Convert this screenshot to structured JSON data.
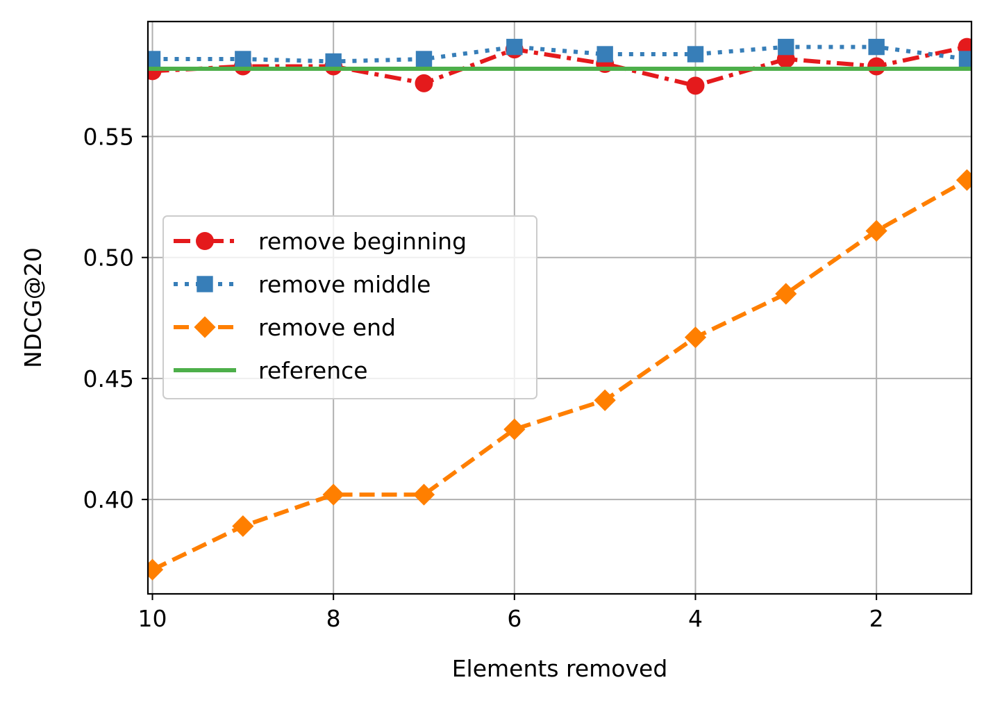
{
  "chart_data": {
    "type": "line",
    "xlabel": "Elements removed",
    "ylabel": "NDCG@20",
    "x": [
      10,
      9,
      8,
      7,
      6,
      5,
      4,
      3,
      2,
      1
    ],
    "xlim": [
      10.05,
      0.95
    ],
    "ylim": [
      0.361,
      0.5975
    ],
    "x_ticks": [
      10,
      8,
      6,
      4,
      2
    ],
    "y_ticks": [
      0.4,
      0.45,
      0.5,
      0.55
    ],
    "x_tick_labels": [
      "10",
      "8",
      "6",
      "4",
      "2"
    ],
    "y_tick_labels": [
      "0.40",
      "0.45",
      "0.50",
      "0.55"
    ],
    "grid": true,
    "legend_position": "center-left",
    "series": [
      {
        "name": "remove beginning",
        "color": "#e41a1c",
        "marker": "circle",
        "line_style": "dashdot",
        "values": [
          0.577,
          0.579,
          0.579,
          0.572,
          0.586,
          0.58,
          0.571,
          0.582,
          0.579,
          0.587
        ]
      },
      {
        "name": "remove middle",
        "color": "#377eb8",
        "marker": "square",
        "line_style": "dotted",
        "values": [
          0.582,
          0.582,
          0.581,
          0.582,
          0.587,
          0.584,
          0.584,
          0.587,
          0.587,
          0.582
        ]
      },
      {
        "name": "remove end",
        "color": "#ff7f00",
        "marker": "diamond",
        "line_style": "dashed",
        "values": [
          0.371,
          0.389,
          0.402,
          0.402,
          0.429,
          0.441,
          0.467,
          0.485,
          0.511,
          0.532
        ]
      },
      {
        "name": "reference",
        "color": "#4daf4a",
        "marker": "none",
        "line_style": "solid",
        "values": [
          0.578,
          0.578,
          0.578,
          0.578,
          0.578,
          0.578,
          0.578,
          0.578,
          0.578,
          0.578
        ]
      }
    ]
  }
}
